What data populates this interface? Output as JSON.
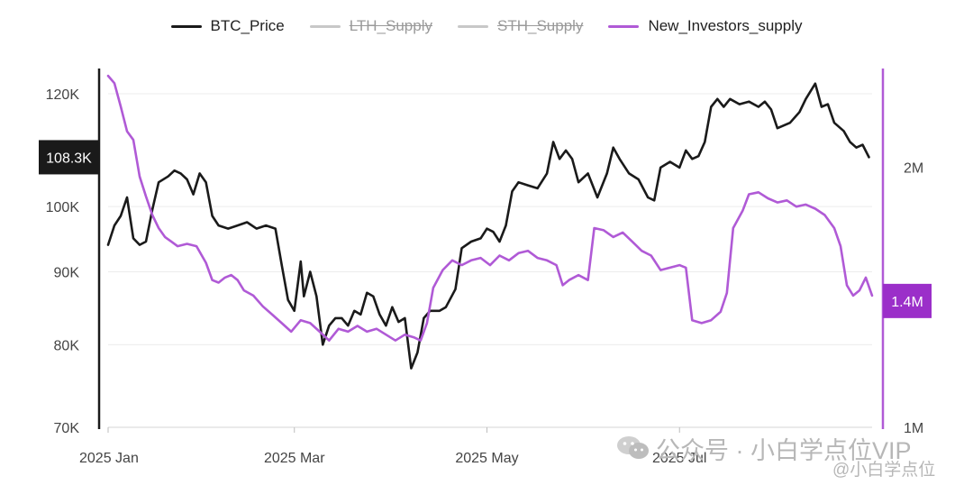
{
  "legend": [
    {
      "label": "BTC_Price",
      "color": "#1a1a1a",
      "hidden": false
    },
    {
      "label": "LTH_Supply",
      "color": "#c8c8c8",
      "hidden": true
    },
    {
      "label": "STH_Supply",
      "color": "#c8c8c8",
      "hidden": true
    },
    {
      "label": "New_Investors_supply",
      "color": "#b05ad6",
      "hidden": false
    }
  ],
  "watermark": {
    "main": "公众号 · 小白学点位VIP",
    "sub": "@小白学点位",
    "icon": "wechat-icon"
  },
  "chart_data": {
    "type": "line",
    "x_range": [
      "2025-01-01",
      "2025-08-31"
    ],
    "x_ticks": [
      {
        "date": "2025-01-01",
        "label": "2025 Jan"
      },
      {
        "date": "2025-03-01",
        "label": "2025 Mar"
      },
      {
        "date": "2025-05-01",
        "label": "2025 May"
      },
      {
        "date": "2025-07-01",
        "label": "2025 Jul"
      }
    ],
    "y_left": {
      "scale": "log",
      "range": [
        70000,
        125000
      ],
      "ticks": [
        {
          "value": 70000,
          "label": "70K"
        },
        {
          "value": 80000,
          "label": "80K"
        },
        {
          "value": 90000,
          "label": "90K"
        },
        {
          "value": 100000,
          "label": "100K"
        },
        {
          "value": 120000,
          "label": "120K"
        }
      ],
      "axis_color": "#1a1a1a"
    },
    "y_right": {
      "scale": "log",
      "range": [
        1000000,
        2600000
      ],
      "ticks": [
        {
          "value": 1000000,
          "label": "1M"
        },
        {
          "value": 2000000,
          "label": "2M"
        }
      ],
      "axis_color": "#b05ad6"
    },
    "grid": true,
    "legend_position": "top-center",
    "badges": [
      {
        "axis": "left",
        "value": 108300,
        "label": "108.3K",
        "color": "#1a1a1a"
      },
      {
        "axis": "right",
        "value": 1400000,
        "label": "1.4M",
        "color": "#9b2fc9"
      }
    ],
    "series": [
      {
        "name": "BTC_Price",
        "axis": "left",
        "color": "#1a1a1a",
        "points": [
          [
            "2025-01-01",
            94000
          ],
          [
            "2025-01-03",
            97000
          ],
          [
            "2025-01-05",
            98500
          ],
          [
            "2025-01-07",
            101500
          ],
          [
            "2025-01-09",
            95000
          ],
          [
            "2025-01-11",
            94000
          ],
          [
            "2025-01-13",
            94500
          ],
          [
            "2025-01-15",
            99500
          ],
          [
            "2025-01-17",
            104000
          ],
          [
            "2025-01-20",
            105000
          ],
          [
            "2025-01-22",
            106000
          ],
          [
            "2025-01-24",
            105500
          ],
          [
            "2025-01-26",
            104500
          ],
          [
            "2025-01-28",
            102000
          ],
          [
            "2025-01-30",
            105500
          ],
          [
            "2025-02-01",
            104000
          ],
          [
            "2025-02-03",
            98500
          ],
          [
            "2025-02-05",
            97000
          ],
          [
            "2025-02-08",
            96500
          ],
          [
            "2025-02-11",
            97000
          ],
          [
            "2025-02-14",
            97500
          ],
          [
            "2025-02-17",
            96500
          ],
          [
            "2025-02-20",
            97000
          ],
          [
            "2025-02-23",
            96500
          ],
          [
            "2025-02-25",
            91000
          ],
          [
            "2025-02-27",
            86000
          ],
          [
            "2025-03-01",
            84500
          ],
          [
            "2025-03-03",
            91500
          ],
          [
            "2025-03-04",
            86500
          ],
          [
            "2025-03-06",
            90000
          ],
          [
            "2025-03-08",
            86500
          ],
          [
            "2025-03-10",
            80000
          ],
          [
            "2025-03-12",
            82500
          ],
          [
            "2025-03-14",
            83500
          ],
          [
            "2025-03-16",
            83500
          ],
          [
            "2025-03-18",
            82500
          ],
          [
            "2025-03-20",
            84500
          ],
          [
            "2025-03-22",
            84000
          ],
          [
            "2025-03-24",
            87000
          ],
          [
            "2025-03-26",
            86500
          ],
          [
            "2025-03-28",
            84000
          ],
          [
            "2025-03-30",
            82500
          ],
          [
            "2025-04-01",
            85000
          ],
          [
            "2025-04-03",
            83000
          ],
          [
            "2025-04-05",
            83500
          ],
          [
            "2025-04-07",
            77000
          ],
          [
            "2025-04-09",
            79000
          ],
          [
            "2025-04-11",
            83500
          ],
          [
            "2025-04-13",
            84500
          ],
          [
            "2025-04-16",
            84500
          ],
          [
            "2025-04-18",
            85000
          ],
          [
            "2025-04-21",
            87500
          ],
          [
            "2025-04-23",
            93500
          ],
          [
            "2025-04-26",
            94500
          ],
          [
            "2025-04-29",
            95000
          ],
          [
            "2025-05-01",
            96500
          ],
          [
            "2025-05-03",
            96000
          ],
          [
            "2025-05-05",
            94500
          ],
          [
            "2025-05-07",
            97000
          ],
          [
            "2025-05-09",
            102500
          ],
          [
            "2025-05-11",
            104000
          ],
          [
            "2025-05-14",
            103500
          ],
          [
            "2025-05-17",
            103000
          ],
          [
            "2025-05-20",
            105500
          ],
          [
            "2025-05-22",
            111000
          ],
          [
            "2025-05-24",
            108000
          ],
          [
            "2025-05-26",
            109500
          ],
          [
            "2025-05-28",
            108000
          ],
          [
            "2025-05-30",
            104000
          ],
          [
            "2025-06-02",
            105500
          ],
          [
            "2025-06-05",
            101500
          ],
          [
            "2025-06-08",
            105500
          ],
          [
            "2025-06-10",
            110000
          ],
          [
            "2025-06-12",
            108000
          ],
          [
            "2025-06-15",
            105500
          ],
          [
            "2025-06-18",
            104500
          ],
          [
            "2025-06-21",
            101500
          ],
          [
            "2025-06-23",
            101000
          ],
          [
            "2025-06-25",
            106500
          ],
          [
            "2025-06-28",
            107500
          ],
          [
            "2025-07-01",
            106500
          ],
          [
            "2025-07-03",
            109500
          ],
          [
            "2025-07-05",
            108000
          ],
          [
            "2025-07-07",
            108500
          ],
          [
            "2025-07-09",
            111000
          ],
          [
            "2025-07-11",
            117500
          ],
          [
            "2025-07-13",
            119000
          ],
          [
            "2025-07-15",
            117500
          ],
          [
            "2025-07-17",
            119000
          ],
          [
            "2025-07-20",
            118000
          ],
          [
            "2025-07-23",
            118500
          ],
          [
            "2025-07-26",
            117500
          ],
          [
            "2025-07-28",
            118500
          ],
          [
            "2025-07-30",
            117000
          ],
          [
            "2025-08-01",
            113500
          ],
          [
            "2025-08-03",
            114000
          ],
          [
            "2025-08-05",
            114500
          ],
          [
            "2025-08-08",
            116500
          ],
          [
            "2025-08-10",
            119000
          ],
          [
            "2025-08-13",
            122000
          ],
          [
            "2025-08-15",
            117500
          ],
          [
            "2025-08-17",
            118000
          ],
          [
            "2025-08-19",
            114500
          ],
          [
            "2025-08-22",
            113000
          ],
          [
            "2025-08-24",
            111000
          ],
          [
            "2025-08-26",
            110000
          ],
          [
            "2025-08-28",
            110500
          ],
          [
            "2025-08-30",
            108300
          ]
        ]
      },
      {
        "name": "New_Investors_supply",
        "axis": "right",
        "color": "#b05ad6",
        "points": [
          [
            "2025-01-01",
            2550000
          ],
          [
            "2025-01-03",
            2500000
          ],
          [
            "2025-01-05",
            2350000
          ],
          [
            "2025-01-07",
            2200000
          ],
          [
            "2025-01-09",
            2150000
          ],
          [
            "2025-01-11",
            1950000
          ],
          [
            "2025-01-13",
            1850000
          ],
          [
            "2025-01-15",
            1760000
          ],
          [
            "2025-01-17",
            1700000
          ],
          [
            "2025-01-19",
            1660000
          ],
          [
            "2025-01-21",
            1640000
          ],
          [
            "2025-01-23",
            1620000
          ],
          [
            "2025-01-26",
            1630000
          ],
          [
            "2025-01-29",
            1620000
          ],
          [
            "2025-02-01",
            1550000
          ],
          [
            "2025-02-03",
            1480000
          ],
          [
            "2025-02-05",
            1470000
          ],
          [
            "2025-02-07",
            1490000
          ],
          [
            "2025-02-09",
            1500000
          ],
          [
            "2025-02-11",
            1480000
          ],
          [
            "2025-02-13",
            1440000
          ],
          [
            "2025-02-16",
            1420000
          ],
          [
            "2025-02-19",
            1380000
          ],
          [
            "2025-02-22",
            1350000
          ],
          [
            "2025-02-25",
            1320000
          ],
          [
            "2025-02-28",
            1290000
          ],
          [
            "2025-03-03",
            1330000
          ],
          [
            "2025-03-06",
            1320000
          ],
          [
            "2025-03-09",
            1290000
          ],
          [
            "2025-03-12",
            1260000
          ],
          [
            "2025-03-15",
            1300000
          ],
          [
            "2025-03-18",
            1290000
          ],
          [
            "2025-03-21",
            1310000
          ],
          [
            "2025-03-24",
            1290000
          ],
          [
            "2025-03-27",
            1300000
          ],
          [
            "2025-03-30",
            1280000
          ],
          [
            "2025-04-02",
            1260000
          ],
          [
            "2025-04-05",
            1280000
          ],
          [
            "2025-04-08",
            1270000
          ],
          [
            "2025-04-10",
            1260000
          ],
          [
            "2025-04-12",
            1320000
          ],
          [
            "2025-04-14",
            1450000
          ],
          [
            "2025-04-17",
            1520000
          ],
          [
            "2025-04-20",
            1560000
          ],
          [
            "2025-04-23",
            1540000
          ],
          [
            "2025-04-26",
            1560000
          ],
          [
            "2025-04-29",
            1570000
          ],
          [
            "2025-05-02",
            1540000
          ],
          [
            "2025-05-05",
            1580000
          ],
          [
            "2025-05-08",
            1560000
          ],
          [
            "2025-05-11",
            1590000
          ],
          [
            "2025-05-14",
            1600000
          ],
          [
            "2025-05-17",
            1570000
          ],
          [
            "2025-05-20",
            1560000
          ],
          [
            "2025-05-23",
            1540000
          ],
          [
            "2025-05-25",
            1460000
          ],
          [
            "2025-05-27",
            1480000
          ],
          [
            "2025-05-30",
            1500000
          ],
          [
            "2025-06-02",
            1480000
          ],
          [
            "2025-06-04",
            1700000
          ],
          [
            "2025-06-07",
            1690000
          ],
          [
            "2025-06-10",
            1660000
          ],
          [
            "2025-06-13",
            1680000
          ],
          [
            "2025-06-16",
            1640000
          ],
          [
            "2025-06-19",
            1600000
          ],
          [
            "2025-06-22",
            1580000
          ],
          [
            "2025-06-25",
            1520000
          ],
          [
            "2025-06-28",
            1530000
          ],
          [
            "2025-07-01",
            1540000
          ],
          [
            "2025-07-03",
            1530000
          ],
          [
            "2025-07-05",
            1330000
          ],
          [
            "2025-07-08",
            1320000
          ],
          [
            "2025-07-11",
            1330000
          ],
          [
            "2025-07-14",
            1360000
          ],
          [
            "2025-07-16",
            1430000
          ],
          [
            "2025-07-18",
            1700000
          ],
          [
            "2025-07-21",
            1780000
          ],
          [
            "2025-07-23",
            1860000
          ],
          [
            "2025-07-26",
            1870000
          ],
          [
            "2025-07-29",
            1840000
          ],
          [
            "2025-08-01",
            1820000
          ],
          [
            "2025-08-04",
            1830000
          ],
          [
            "2025-08-07",
            1800000
          ],
          [
            "2025-08-10",
            1810000
          ],
          [
            "2025-08-13",
            1790000
          ],
          [
            "2025-08-16",
            1760000
          ],
          [
            "2025-08-19",
            1700000
          ],
          [
            "2025-08-21",
            1620000
          ],
          [
            "2025-08-23",
            1460000
          ],
          [
            "2025-08-25",
            1420000
          ],
          [
            "2025-08-27",
            1440000
          ],
          [
            "2025-08-29",
            1490000
          ],
          [
            "2025-08-31",
            1420000
          ]
        ]
      }
    ]
  }
}
